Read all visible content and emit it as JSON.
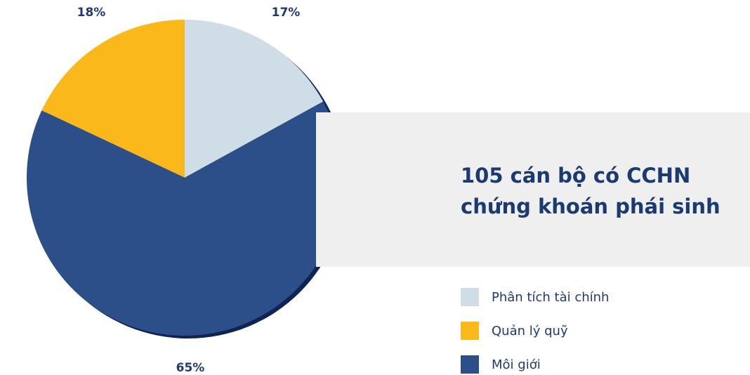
{
  "title": "105 cán bộ có CCHN\nchứng khoán phái sinh",
  "chart_data": {
    "type": "pie",
    "slices": [
      {
        "name": "Phân tích tài chính",
        "value": 17,
        "label": "17%",
        "color": "#cfdde6"
      },
      {
        "name": "Môi giới",
        "value": 65,
        "label": "65%",
        "color": "#2c4f8a"
      },
      {
        "name": "Quản lý quỹ",
        "value": 18,
        "label": "18%",
        "color": "#fbb81b"
      }
    ],
    "legend": {
      "placement": "bottom-right",
      "items": [
        {
          "label": "Phân tích tài chính",
          "color": "#cfdde6"
        },
        {
          "label": "Quản lý quỹ",
          "color": "#fbb81b"
        },
        {
          "label": "Môi giới",
          "color": "#2c4f8a"
        }
      ]
    }
  }
}
